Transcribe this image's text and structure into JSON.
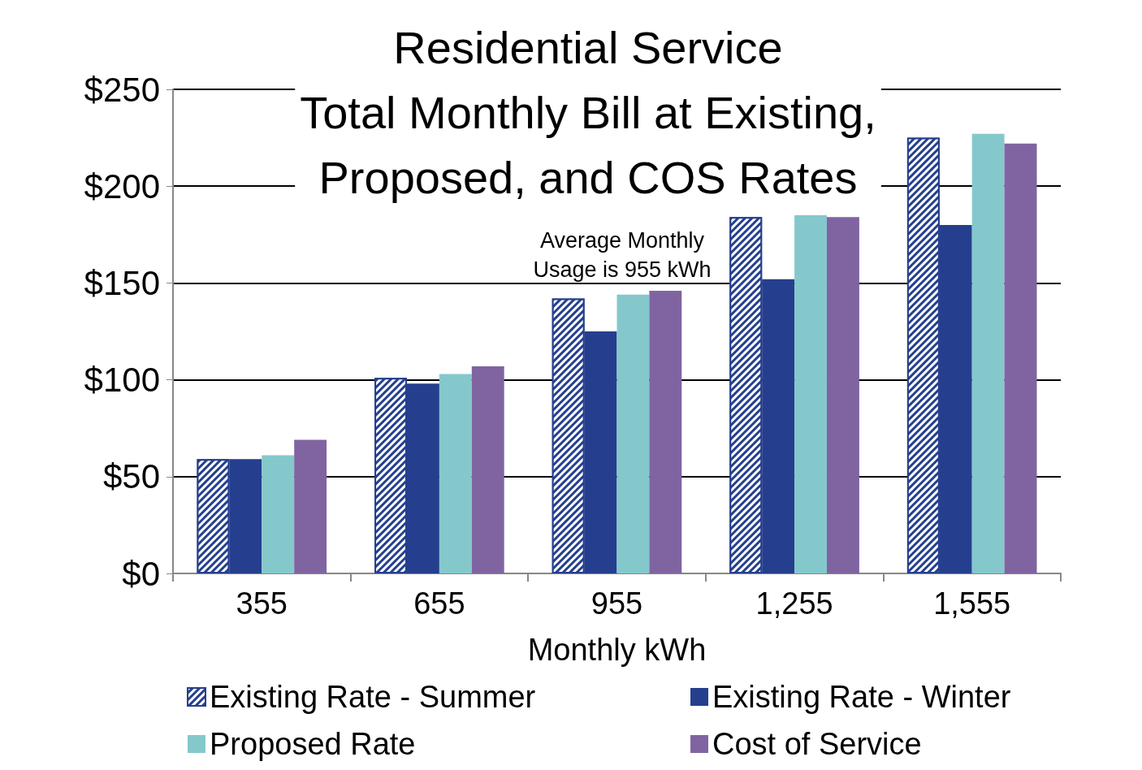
{
  "chart_data": {
    "type": "bar",
    "title": "Residential Service\nTotal Monthly Bill at Existing,\nProposed, and COS Rates",
    "xlabel": "Monthly kWh",
    "categories": [
      "355",
      "655",
      "955",
      "1,255",
      "1,555"
    ],
    "series": [
      {
        "name": "Existing Rate - Summer",
        "color": "#253f8e",
        "values": [
          59,
          101,
          142,
          184,
          225
        ]
      },
      {
        "name": "Existing Rate - Winter",
        "color": "#253f8e",
        "values": [
          59,
          98,
          125,
          152,
          180
        ]
      },
      {
        "name": "Proposed Rate",
        "color": "#84c8cc",
        "values": [
          61,
          103,
          144,
          185,
          227
        ]
      },
      {
        "name": "Cost of Service",
        "color": "#8064a2",
        "values": [
          69,
          107,
          146,
          184,
          222
        ]
      }
    ],
    "ylim": [
      0,
      250
    ],
    "yticks": [
      {
        "value": 0,
        "label": "$0"
      },
      {
        "value": 50,
        "label": "$50"
      },
      {
        "value": 100,
        "label": "$100"
      },
      {
        "value": 150,
        "label": "$150"
      },
      {
        "value": 200,
        "label": "$200"
      },
      {
        "value": 250,
        "label": "$250"
      }
    ],
    "annotations": [
      "Average Monthly\nUsage is 955 kWh"
    ],
    "grid": "y",
    "legend": "bottom"
  }
}
